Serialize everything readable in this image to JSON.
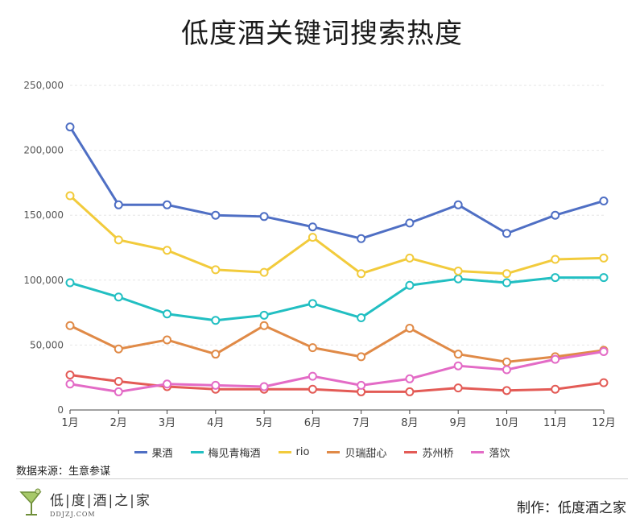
{
  "chart_data": {
    "type": "line",
    "title": "低度酒关键词搜索热度",
    "categories": [
      "1月",
      "2月",
      "3月",
      "4月",
      "5月",
      "6月",
      "7月",
      "8月",
      "9月",
      "10月",
      "11月",
      "12月"
    ],
    "y_ticks": [
      "0",
      "50,000",
      "100,000",
      "150,000",
      "200,000",
      "250,000"
    ],
    "ylim": [
      0,
      250000
    ],
    "grid": true,
    "legend_position": "bottom",
    "series": [
      {
        "name": "果酒",
        "color": "#4f6fc4",
        "values": [
          218000,
          158000,
          158000,
          150000,
          149000,
          141000,
          132000,
          144000,
          158000,
          136000,
          150000,
          161000
        ]
      },
      {
        "name": "梅见青梅酒",
        "color": "#22bfc2",
        "values": [
          98000,
          87000,
          74000,
          69000,
          73000,
          82000,
          71000,
          96000,
          101000,
          98000,
          102000,
          102000
        ]
      },
      {
        "name": "rio",
        "color": "#f2cb3c",
        "values": [
          165000,
          131000,
          123000,
          108000,
          106000,
          133000,
          105000,
          117000,
          107000,
          105000,
          116000,
          117000
        ]
      },
      {
        "name": "贝瑞甜心",
        "color": "#e08a47",
        "values": [
          65000,
          47000,
          54000,
          43000,
          65000,
          48000,
          41000,
          63000,
          43000,
          37000,
          41000,
          46000
        ]
      },
      {
        "name": "苏州桥",
        "color": "#e35b56",
        "values": [
          27000,
          22000,
          18000,
          16000,
          16000,
          16000,
          14000,
          14000,
          17000,
          15000,
          16000,
          21000
        ]
      },
      {
        "name": "落饮",
        "color": "#e36bc6",
        "values": [
          20000,
          14000,
          20000,
          19000,
          18000,
          26000,
          19000,
          24000,
          34000,
          31000,
          39000,
          45000
        ]
      }
    ]
  },
  "source_note": "数据来源：生意参谋",
  "logo": {
    "name": "低|度|酒|之|家",
    "url": "DDJZJ.COM"
  },
  "credit": "制作：低度酒之家"
}
